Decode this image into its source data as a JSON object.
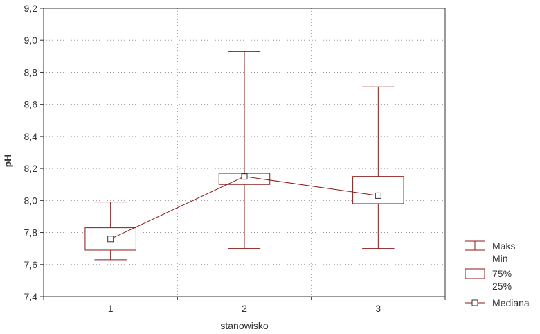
{
  "chart_data": {
    "type": "box",
    "title": "",
    "xlabel": "stanowisko",
    "ylabel": "pH",
    "ylim": [
      7.4,
      9.2
    ],
    "y_ticks": [
      "7,4",
      "7,6",
      "7,8",
      "8,0",
      "8,2",
      "8,4",
      "8,6",
      "8,8",
      "9,0",
      "9,2"
    ],
    "categories": [
      "1",
      "2",
      "3"
    ],
    "max": [
      7.99,
      8.93,
      8.71
    ],
    "q75": [
      7.83,
      8.17,
      8.15
    ],
    "median": [
      7.76,
      8.15,
      8.03
    ],
    "q25": [
      7.69,
      8.1,
      7.98
    ],
    "min": [
      7.63,
      7.7,
      7.7
    ],
    "grid": true,
    "legend_position": "right",
    "legend": {
      "whisker_labels": [
        "Maks",
        "Min"
      ],
      "box_labels": [
        "75%",
        "25%"
      ],
      "median_label": "Mediana"
    },
    "colors": {
      "series": "#8b1a1a",
      "frame": "#333333",
      "grid": "#999999"
    }
  }
}
